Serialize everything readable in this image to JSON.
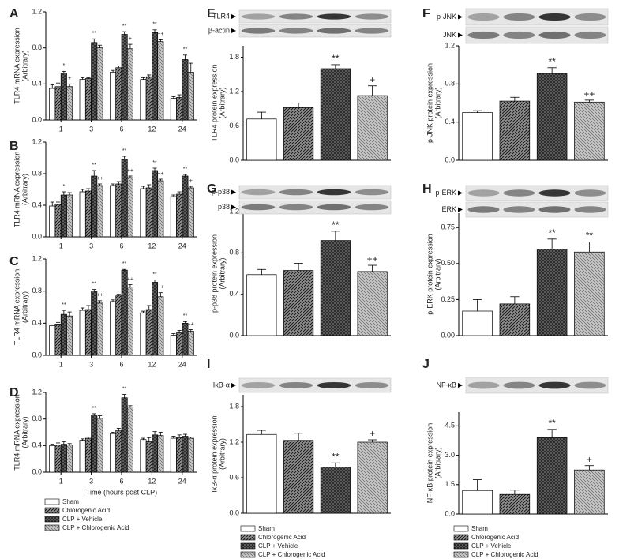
{
  "chart_data": [
    {
      "type": "bar",
      "panel_label": "A",
      "ylabel": "TLR4 mRNA expression",
      "ylabel_note": "(Arbitrary)",
      "categories": [
        "1",
        "3",
        "6",
        "12",
        "24"
      ],
      "ylim": [
        0,
        1.2
      ],
      "yticks": [
        {
          "value": 0,
          "label": "0.0"
        },
        0.4,
        0.8,
        1.2
      ],
      "legend": false,
      "series": [
        {
          "name": "Sham",
          "color": "#ffffff",
          "values": [
            0.35,
            0.45,
            0.53,
            0.45,
            0.24
          ],
          "errors": [
            0.04,
            0.02,
            0.02,
            0.02,
            0.02
          ]
        },
        {
          "name": "Chlorogenic Acid",
          "color": "#8c8c8c",
          "values": [
            0.37,
            0.46,
            0.58,
            0.48,
            0.25
          ],
          "errors": [
            0.04,
            0.01,
            0.02,
            0.02,
            0.03
          ]
        },
        {
          "name": "CLP + Vehicle",
          "color": "#262626",
          "values": [
            0.52,
            0.86,
            0.95,
            0.97,
            0.67
          ],
          "errors": [
            0.02,
            0.04,
            0.03,
            0.03,
            0.05
          ],
          "annotations": [
            "*",
            "**",
            "**",
            "**",
            "**"
          ]
        },
        {
          "name": "CLP + Chlorogenic Acid",
          "color": "#c4c4c4",
          "values": [
            0.37,
            0.8,
            0.79,
            0.87,
            0.53
          ],
          "errors": [
            0.03,
            0.03,
            0.05,
            0.02,
            0.1
          ],
          "annotations": [
            "+",
            null,
            "+",
            "++",
            null
          ]
        }
      ]
    },
    {
      "type": "bar",
      "panel_label": "B",
      "ylabel": "TLR4 mRNA expression",
      "ylabel_note": "(Arbitrary)",
      "categories": [
        "1",
        "3",
        "6",
        "12",
        "24"
      ],
      "ylim": [
        0,
        1.2
      ],
      "yticks": [
        {
          "value": 0,
          "label": "0.0"
        },
        0.4,
        0.8,
        1.2
      ],
      "legend": false,
      "series": [
        {
          "name": "Sham",
          "color": "#ffffff",
          "values": [
            0.39,
            0.57,
            0.65,
            0.61,
            0.51
          ],
          "errors": [
            0.05,
            0.03,
            0.02,
            0.03,
            0.02
          ]
        },
        {
          "name": "Chlorogenic Acid",
          "color": "#8c8c8c",
          "values": [
            0.41,
            0.58,
            0.67,
            0.62,
            0.54
          ],
          "errors": [
            0.03,
            0.03,
            0.03,
            0.04,
            0.03
          ]
        },
        {
          "name": "CLP + Vehicle",
          "color": "#262626",
          "values": [
            0.53,
            0.77,
            0.98,
            0.84,
            0.77
          ],
          "errors": [
            0.04,
            0.07,
            0.04,
            0.03,
            0.02
          ],
          "annotations": [
            "*",
            "**",
            "**",
            "**",
            "**"
          ]
        },
        {
          "name": "CLP + Chlorogenic Acid",
          "color": "#c4c4c4",
          "values": [
            0.53,
            0.65,
            0.75,
            0.71,
            0.62
          ],
          "errors": [
            0.03,
            0.02,
            0.02,
            0.02,
            0.02
          ],
          "annotations": [
            null,
            "++",
            "++",
            "++",
            "+"
          ]
        }
      ]
    },
    {
      "type": "bar",
      "panel_label": "C",
      "ylabel": "TLR4 mRNA expression",
      "ylabel_note": "(Arbitrary)",
      "categories": [
        "1",
        "3",
        "6",
        "12",
        "24"
      ],
      "ylim": [
        0,
        1.2
      ],
      "yticks": [
        {
          "value": 0,
          "label": "0.0"
        },
        0.4,
        0.8,
        1.2
      ],
      "legend": false,
      "series": [
        {
          "name": "Sham",
          "color": "#ffffff",
          "values": [
            0.37,
            0.56,
            0.67,
            0.53,
            0.25
          ],
          "errors": [
            0.01,
            0.03,
            0.02,
            0.02,
            0.02
          ]
        },
        {
          "name": "Chlorogenic Acid",
          "color": "#8c8c8c",
          "values": [
            0.39,
            0.57,
            0.74,
            0.57,
            0.28
          ],
          "errors": [
            0.02,
            0.05,
            0.02,
            0.05,
            0.03
          ]
        },
        {
          "name": "CLP + Vehicle",
          "color": "#262626",
          "values": [
            0.51,
            0.8,
            1.06,
            0.91,
            0.4
          ],
          "errors": [
            0.05,
            0.02,
            0.01,
            0.03,
            0.02
          ],
          "annotations": [
            "**",
            "**",
            "**",
            "**",
            "**"
          ]
        },
        {
          "name": "CLP + Chlorogenic Acid",
          "color": "#c4c4c4",
          "values": [
            0.49,
            0.65,
            0.85,
            0.73,
            0.3
          ],
          "errors": [
            0.05,
            0.03,
            0.03,
            0.05,
            0.02
          ],
          "annotations": [
            null,
            "++",
            "++",
            "++",
            "++"
          ]
        }
      ]
    },
    {
      "type": "bar",
      "panel_label": "D",
      "ylabel": "TLR4 mRNA expression",
      "ylabel_note": "(Arbitrary)",
      "xlabel": "Time (hours post CLP)",
      "categories": [
        "1",
        "3",
        "6",
        "12",
        "24"
      ],
      "ylim": [
        0,
        1.2
      ],
      "yticks": [
        {
          "value": 0,
          "label": "0.0"
        },
        0.4,
        0.8,
        1.2
      ],
      "legend": true,
      "series": [
        {
          "name": "Sham",
          "color": "#ffffff",
          "values": [
            0.4,
            0.48,
            0.58,
            0.49,
            0.51
          ],
          "errors": [
            0.02,
            0.02,
            0.02,
            0.02,
            0.03
          ]
        },
        {
          "name": "Chlorogenic Acid",
          "color": "#8c8c8c",
          "values": [
            0.41,
            0.51,
            0.63,
            0.46,
            0.52
          ],
          "errors": [
            0.03,
            0.02,
            0.03,
            0.06,
            0.04
          ]
        },
        {
          "name": "CLP + Vehicle",
          "color": "#262626",
          "values": [
            0.42,
            0.86,
            1.12,
            0.56,
            0.54
          ],
          "errors": [
            0.04,
            0.02,
            0.05,
            0.05,
            0.03
          ],
          "annotations": [
            null,
            "**",
            "**",
            null,
            null
          ]
        },
        {
          "name": "CLP + Chlorogenic Acid",
          "color": "#c4c4c4",
          "values": [
            0.41,
            0.81,
            0.98,
            0.55,
            0.51
          ],
          "errors": [
            0.02,
            0.04,
            0.02,
            0.05,
            0.02
          ]
        }
      ]
    },
    {
      "type": "bar",
      "panel_label": "E",
      "ylabel": "TLR4 protein expression",
      "ylabel_note": "(Arbitrary)",
      "blot_labels": [
        "TLR4",
        "β-actin"
      ],
      "ylim": [
        0,
        2.0
      ],
      "yticks": [
        {
          "value": 0,
          "label": "0.0"
        },
        0.6,
        1.2,
        1.8
      ],
      "legend": false,
      "series": [
        {
          "name": "Sham",
          "color": "#ffffff",
          "values": [
            0.72
          ],
          "errors": [
            0.12
          ]
        },
        {
          "name": "Chlorogenic Acid",
          "color": "#8c8c8c",
          "values": [
            0.92
          ],
          "errors": [
            0.08
          ]
        },
        {
          "name": "CLP + Vehicle",
          "color": "#262626",
          "values": [
            1.6
          ],
          "errors": [
            0.07
          ],
          "annotations": [
            "**"
          ]
        },
        {
          "name": "CLP + Chlorogenic Acid",
          "color": "#c4c4c4",
          "values": [
            1.13
          ],
          "errors": [
            0.17
          ],
          "annotations": [
            "+"
          ]
        }
      ]
    },
    {
      "type": "bar",
      "panel_label": "F",
      "ylabel": "p-JNK protein expression",
      "ylabel_note": "(Arbitrary)",
      "blot_labels": [
        "p-JNK",
        "JNK"
      ],
      "ylim": [
        0,
        1.2
      ],
      "yticks": [
        {
          "value": 0,
          "label": "0.0"
        },
        0.4,
        0.8,
        1.2
      ],
      "legend": false,
      "series": [
        {
          "name": "Sham",
          "color": "#ffffff",
          "values": [
            0.5
          ],
          "errors": [
            0.02
          ]
        },
        {
          "name": "Chlorogenic Acid",
          "color": "#8c8c8c",
          "values": [
            0.62
          ],
          "errors": [
            0.04
          ]
        },
        {
          "name": "CLP + Vehicle",
          "color": "#262626",
          "values": [
            0.91
          ],
          "errors": [
            0.06
          ],
          "annotations": [
            "**"
          ]
        },
        {
          "name": "CLP + Chlorogenic Acid",
          "color": "#c4c4c4",
          "values": [
            0.61
          ],
          "errors": [
            0.02
          ],
          "annotations": [
            "++"
          ]
        }
      ]
    },
    {
      "type": "bar",
      "panel_label": "G",
      "ylabel": "p-p38 protein expression",
      "ylabel_note": "(Arbitrary)",
      "blot_labels": [
        "p-p38",
        "p38"
      ],
      "ylim": [
        0,
        1.2
      ],
      "yticks": [
        {
          "value": 0,
          "label": "0.0"
        },
        0.4,
        0.8,
        1.2
      ],
      "legend": false,
      "series": [
        {
          "name": "Sham",
          "color": "#ffffff",
          "values": [
            0.59
          ],
          "errors": [
            0.05
          ]
        },
        {
          "name": "Chlorogenic Acid",
          "color": "#8c8c8c",
          "values": [
            0.63
          ],
          "errors": [
            0.07
          ]
        },
        {
          "name": "CLP + Vehicle",
          "color": "#262626",
          "values": [
            0.92
          ],
          "errors": [
            0.09
          ],
          "annotations": [
            "**"
          ]
        },
        {
          "name": "CLP + Chlorogenic Acid",
          "color": "#c4c4c4",
          "values": [
            0.62
          ],
          "errors": [
            0.06
          ],
          "annotations": [
            "++"
          ]
        }
      ]
    },
    {
      "type": "bar",
      "panel_label": "H",
      "ylabel": "p-ERK protein expression",
      "ylabel_note": "(Arbitrary)",
      "blot_labels": [
        "p-ERK",
        "ERK"
      ],
      "ylim": [
        0,
        0.85
      ],
      "yticks": [
        {
          "value": 0,
          "label": "0.00"
        },
        0.25,
        {
          "value": 0.5,
          "label": "0.50"
        },
        0.75
      ],
      "legend": false,
      "series": [
        {
          "name": "Sham",
          "color": "#ffffff",
          "values": [
            0.17
          ],
          "errors": [
            0.08
          ]
        },
        {
          "name": "Chlorogenic Acid",
          "color": "#8c8c8c",
          "values": [
            0.22
          ],
          "errors": [
            0.05
          ]
        },
        {
          "name": "CLP + Vehicle",
          "color": "#262626",
          "values": [
            0.6
          ],
          "errors": [
            0.07
          ],
          "annotations": [
            "**"
          ]
        },
        {
          "name": "CLP + Chlorogenic Acid",
          "color": "#c4c4c4",
          "values": [
            0.58
          ],
          "errors": [
            0.07
          ],
          "annotations": [
            "**"
          ]
        }
      ]
    },
    {
      "type": "bar",
      "panel_label": "I",
      "ylabel": "IκB-α protein expression",
      "ylabel_note": "(Arbitrary)",
      "blot_labels": [
        "IκB-α"
      ],
      "ylim": [
        0,
        2.0
      ],
      "yticks": [
        {
          "value": 0,
          "label": "0.0"
        },
        0.6,
        1.2,
        1.8
      ],
      "legend": true,
      "series": [
        {
          "name": "Sham",
          "color": "#ffffff",
          "values": [
            1.33
          ],
          "errors": [
            0.07
          ]
        },
        {
          "name": "Chlorogenic Acid",
          "color": "#8c8c8c",
          "values": [
            1.23
          ],
          "errors": [
            0.12
          ]
        },
        {
          "name": "CLP + Vehicle",
          "color": "#262626",
          "values": [
            0.78
          ],
          "errors": [
            0.07
          ],
          "annotations": [
            "**"
          ]
        },
        {
          "name": "CLP + Chlorogenic Acid",
          "color": "#c4c4c4",
          "values": [
            1.2
          ],
          "errors": [
            0.04
          ],
          "annotations": [
            "+"
          ]
        }
      ]
    },
    {
      "type": "bar",
      "panel_label": "J",
      "ylabel": "NF-κB protein expression",
      "ylabel_note": "(Arbitrary)",
      "blot_labels": [
        "NF-κB"
      ],
      "ylim": [
        0,
        5.2
      ],
      "yticks": [
        {
          "value": 0,
          "label": "0.0"
        },
        1.5,
        {
          "value": 3,
          "label": "3.0"
        },
        4.5
      ],
      "legend": true,
      "series": [
        {
          "name": "Sham",
          "color": "#ffffff",
          "values": [
            1.2
          ],
          "errors": [
            0.55
          ]
        },
        {
          "name": "Chlorogenic Acid",
          "color": "#8c8c8c",
          "values": [
            1.0
          ],
          "errors": [
            0.22
          ]
        },
        {
          "name": "CLP + Vehicle",
          "color": "#262626",
          "values": [
            3.9
          ],
          "errors": [
            0.42
          ],
          "annotations": [
            "**"
          ]
        },
        {
          "name": "CLP + Chlorogenic Acid",
          "color": "#c4c4c4",
          "values": [
            2.25
          ],
          "errors": [
            0.22
          ],
          "annotations": [
            "+"
          ]
        }
      ]
    }
  ]
}
